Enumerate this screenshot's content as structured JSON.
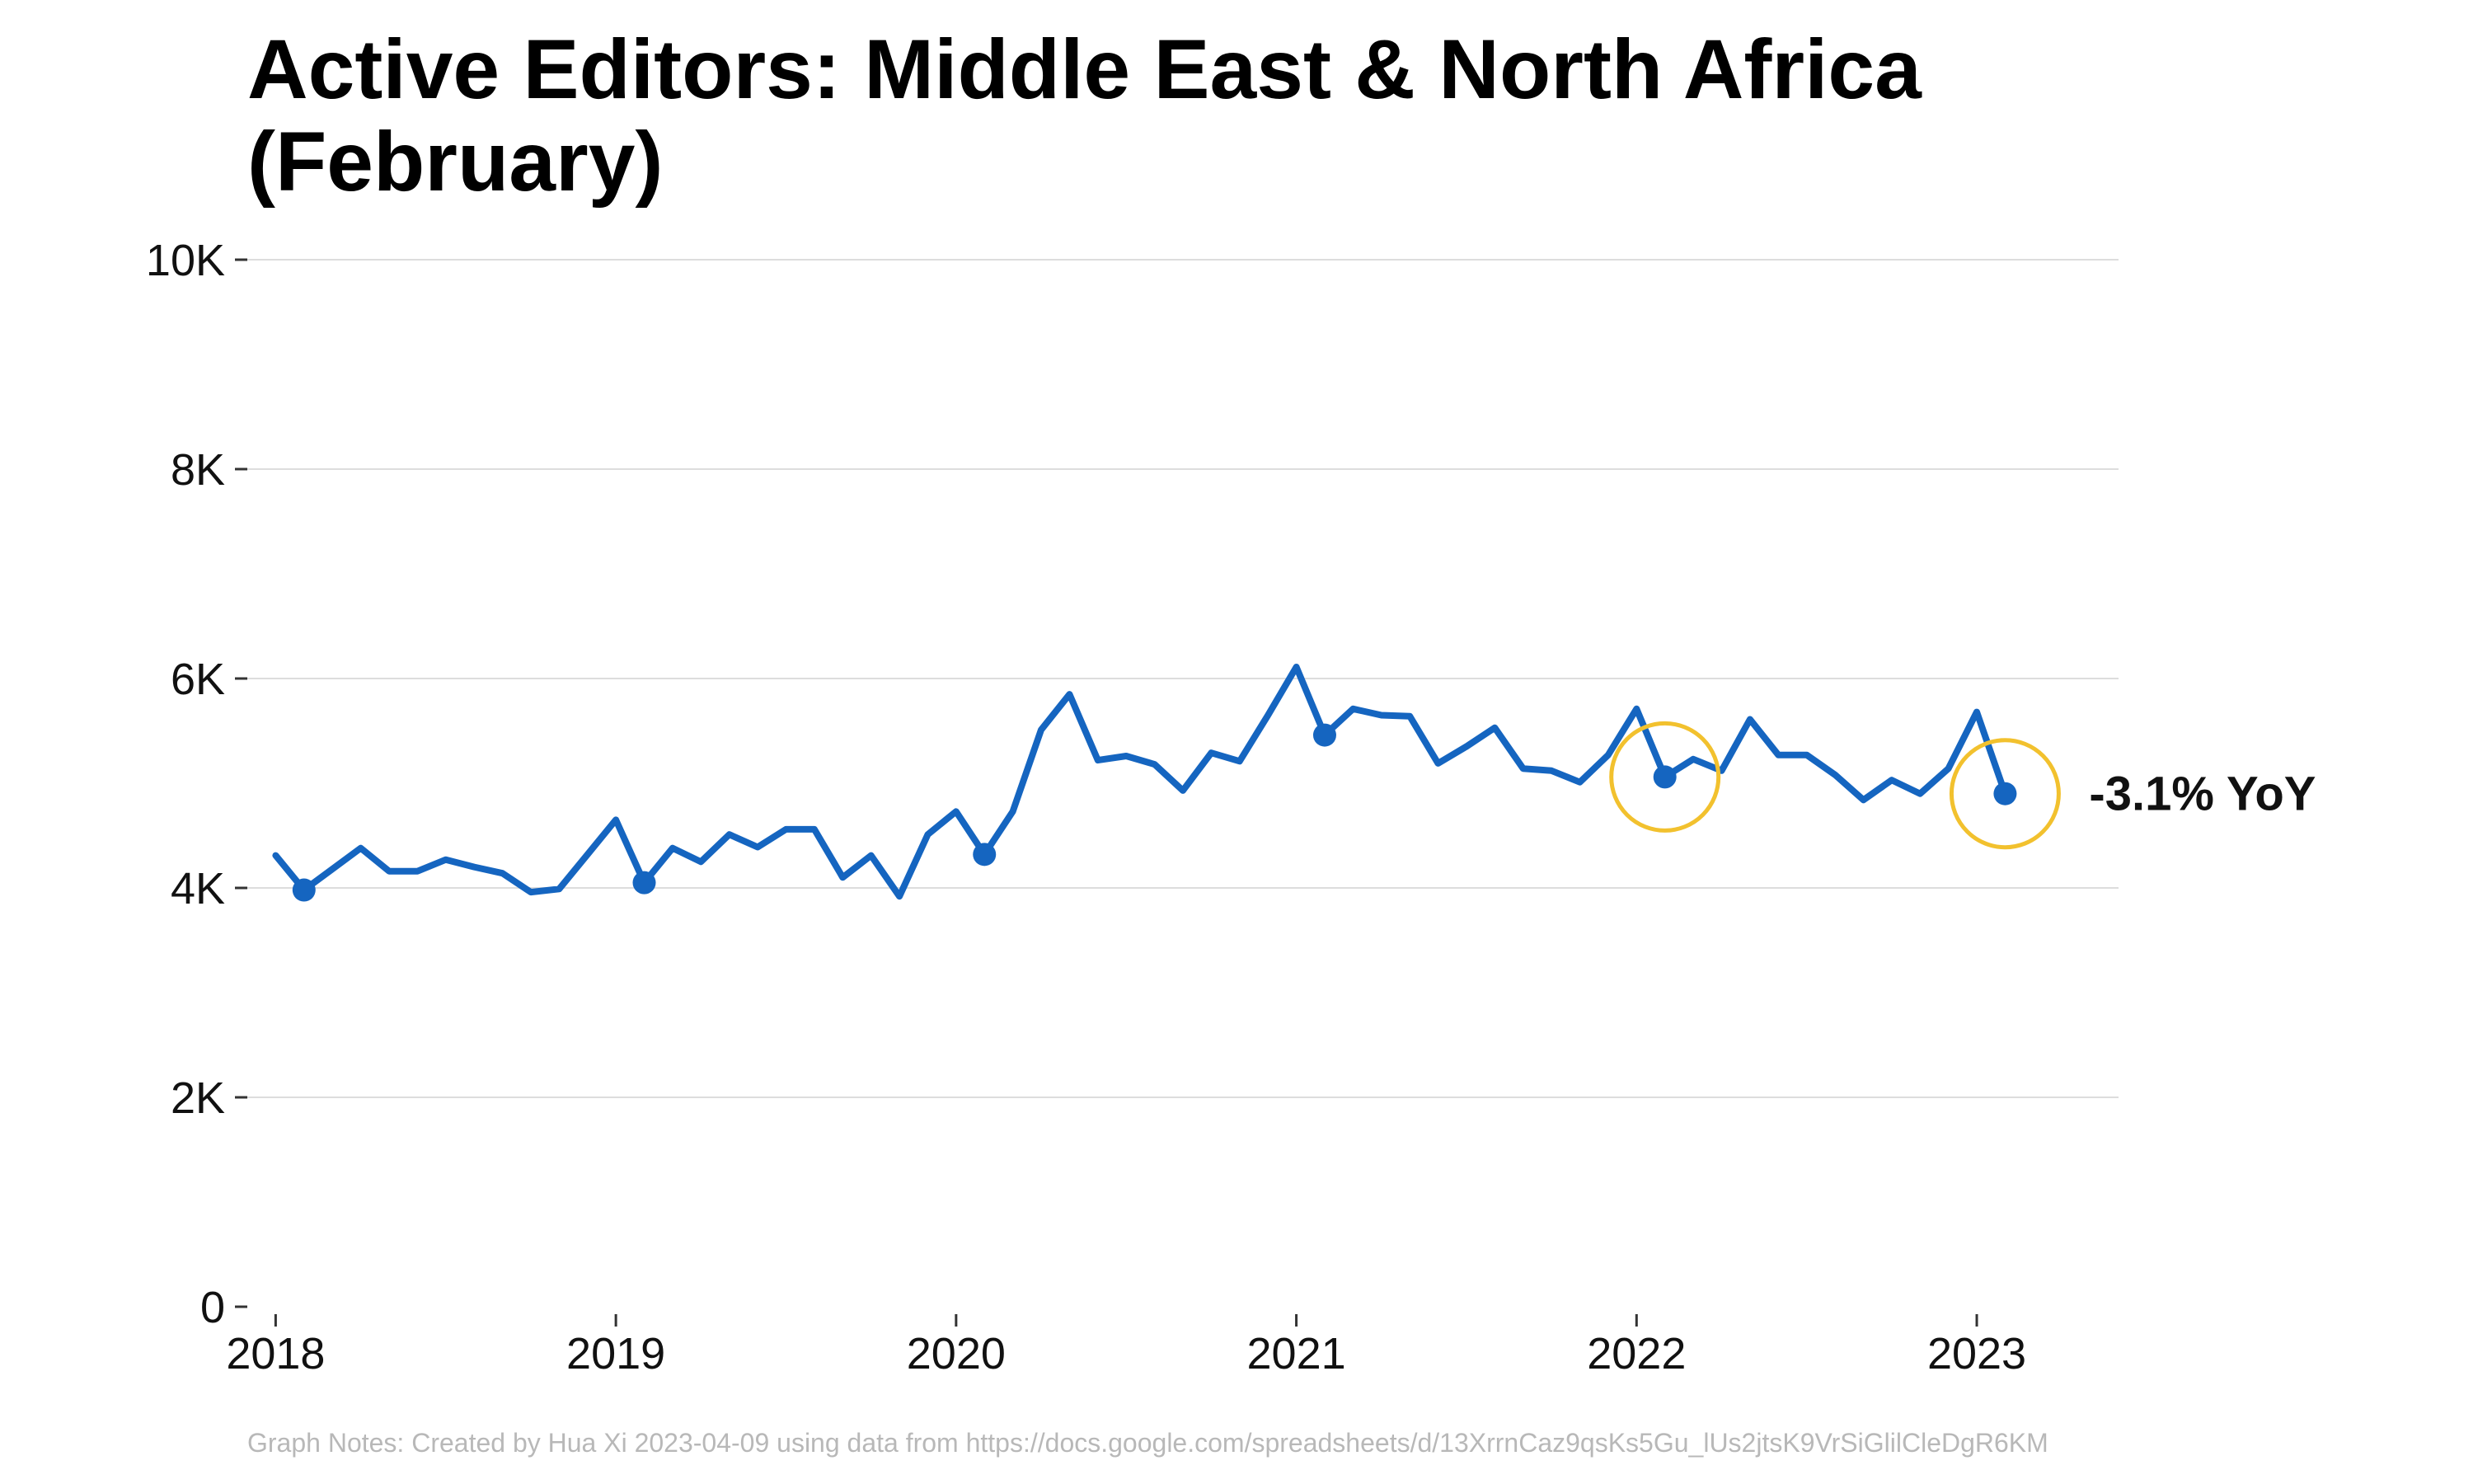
{
  "chart_data": {
    "type": "line",
    "title": "Active Editors: Middle East & North Africa (February)",
    "xlabel": "",
    "ylabel": "",
    "x_ticks": [
      "2018",
      "2019",
      "2020",
      "2021",
      "2022",
      "2023"
    ],
    "y_ticks": [
      "0",
      "2K",
      "4K",
      "6K",
      "8K",
      "10K"
    ],
    "ylim": [
      0,
      10000
    ],
    "xlim": [
      "2017-12",
      "2023-06"
    ],
    "grid": "horizontal",
    "series_color": "#1565c0",
    "highlight_color": "#f2c12e",
    "series": [
      {
        "x": [
          "2018-01",
          "2018-02",
          "2018-03",
          "2018-04",
          "2018-05",
          "2018-06",
          "2018-07",
          "2018-08",
          "2018-09",
          "2018-10",
          "2018-11",
          "2018-12",
          "2019-01",
          "2019-02",
          "2019-03",
          "2019-04",
          "2019-05",
          "2019-06",
          "2019-07",
          "2019-08",
          "2019-09",
          "2019-10",
          "2019-11",
          "2019-12",
          "2020-01",
          "2020-02",
          "2020-03",
          "2020-04",
          "2020-05",
          "2020-06",
          "2020-07",
          "2020-08",
          "2020-09",
          "2020-10",
          "2020-11",
          "2020-12",
          "2021-01",
          "2021-02",
          "2021-03",
          "2021-04",
          "2021-05",
          "2021-06",
          "2021-07",
          "2021-08",
          "2021-09",
          "2021-10",
          "2021-11",
          "2021-12",
          "2022-01",
          "2022-02",
          "2022-03",
          "2022-04",
          "2022-05",
          "2022-06",
          "2022-07",
          "2022-08",
          "2022-09",
          "2022-10",
          "2022-11",
          "2022-12",
          "2023-01",
          "2023-02"
        ],
        "values": [
          4310,
          3980,
          4180,
          4380,
          4160,
          4160,
          4270,
          4200,
          4140,
          3960,
          3990,
          4320,
          4650,
          4050,
          4380,
          4250,
          4510,
          4390,
          4560,
          4560,
          4100,
          4310,
          3920,
          4510,
          4730,
          4320,
          4730,
          5510,
          5850,
          5220,
          5260,
          5180,
          4930,
          5290,
          5210,
          5650,
          6110,
          5460,
          5710,
          5650,
          5640,
          5190,
          5350,
          5530,
          5140,
          5120,
          5010,
          5270,
          5710,
          5060,
          5230,
          5120,
          5610,
          5270,
          5270,
          5080,
          4840,
          5030,
          4900,
          5140,
          5680,
          4900
        ]
      }
    ],
    "markers": [
      {
        "x": "2018-02",
        "value": 3980
      },
      {
        "x": "2019-02",
        "value": 4050
      },
      {
        "x": "2020-02",
        "value": 4320
      },
      {
        "x": "2021-02",
        "value": 5460
      },
      {
        "x": "2022-02",
        "value": 5060,
        "highlight": true
      },
      {
        "x": "2023-02",
        "value": 4900,
        "highlight": true
      }
    ],
    "annotation": {
      "text": "-3.1% YoY",
      "x": "2023-02",
      "value": 4900
    }
  },
  "footer": {
    "note": "Graph Notes: Created by Hua Xi 2023-04-09 using data from https://docs.google.com/spreadsheets/d/13XrrnCaz9qsKs5Gu_lUs2jtsK9VrSiGlilCleDgR6KM"
  }
}
